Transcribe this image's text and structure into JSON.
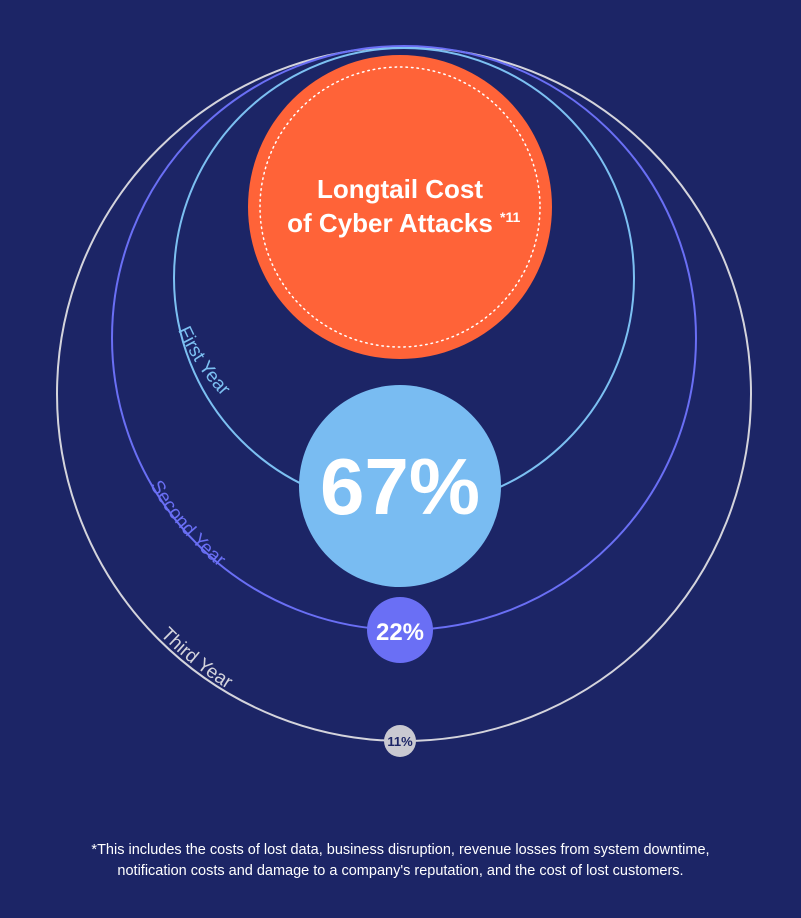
{
  "title": {
    "line1": "Longtail Cost",
    "line2": "of Cyber Attacks",
    "footnote_ref": "*11"
  },
  "rings": [
    {
      "label": "First Year",
      "percent": "67%",
      "value": 67,
      "color": "#7cc0f2",
      "bubble_color": "#79bcf2"
    },
    {
      "label": "Second Year",
      "percent": "22%",
      "value": 22,
      "color": "#6a6ff5",
      "bubble_color": "#6a6ff5"
    },
    {
      "label": "Third Year",
      "percent": "11%",
      "value": 11,
      "color": "#d4d4dc",
      "bubble_color": "#c9c9d1"
    }
  ],
  "footnote": {
    "line1": "*This includes the costs of lost data, business disruption, revenue losses from system downtime,",
    "line2": "notification costs and damage to a company's reputation, and the cost of lost customers."
  },
  "colors": {
    "background": "#1c2566",
    "accent": "#ff6338",
    "text": "#ffffff",
    "pct_dark_text": "#1c2566"
  }
}
